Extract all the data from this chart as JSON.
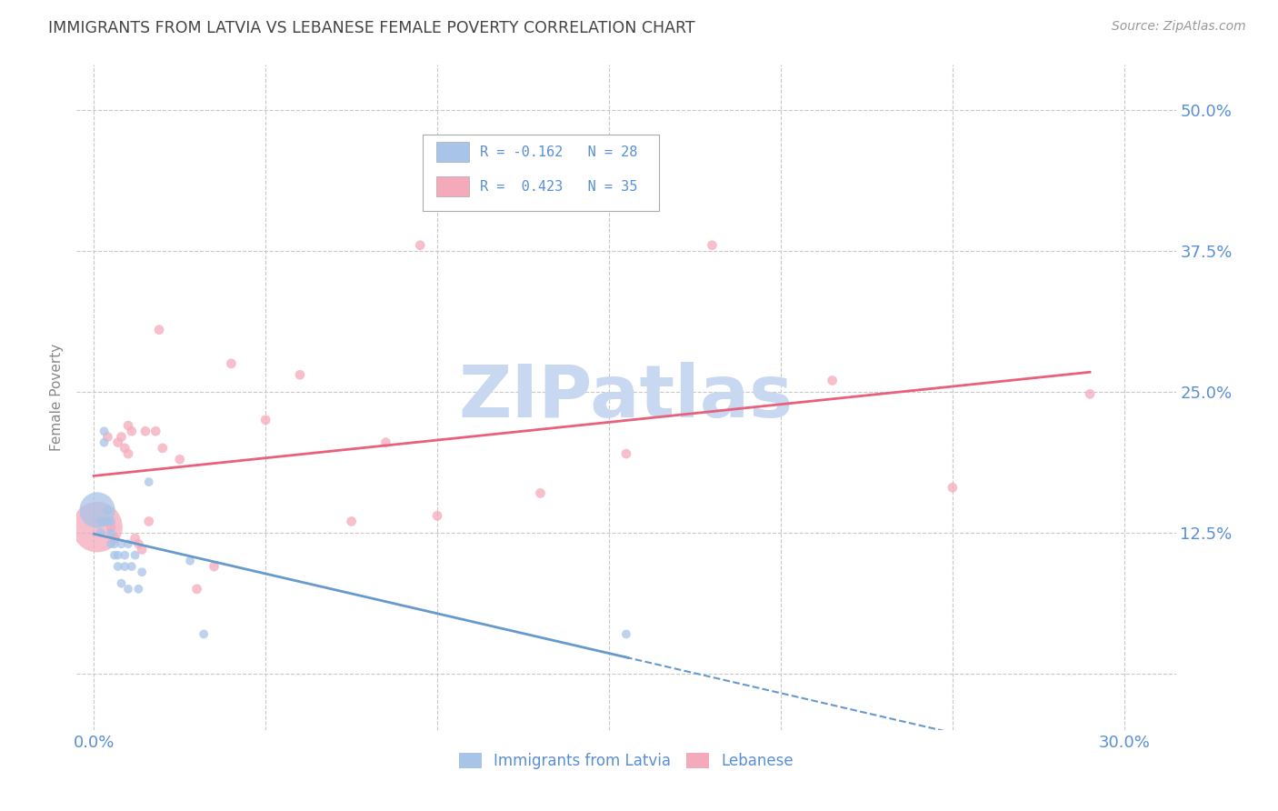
{
  "title": "IMMIGRANTS FROM LATVIA VS LEBANESE FEMALE POVERTY CORRELATION CHART",
  "source": "Source: ZipAtlas.com",
  "ylabel": "Female Poverty",
  "x_ticks": [
    0.0,
    0.05,
    0.1,
    0.15,
    0.2,
    0.25,
    0.3
  ],
  "y_ticks": [
    0.0,
    0.125,
    0.25,
    0.375,
    0.5
  ],
  "y_tick_labels": [
    "",
    "12.5%",
    "25.0%",
    "37.5%",
    "50.0%"
  ],
  "xlim": [
    -0.005,
    0.315
  ],
  "ylim": [
    -0.05,
    0.54
  ],
  "legend_r_blue": "-0.162",
  "legend_n_blue": "28",
  "legend_r_pink": "0.423",
  "legend_n_pink": "35",
  "blue_color": "#a8c4e8",
  "pink_color": "#f5aabb",
  "trend_blue": "#6699cc",
  "trend_pink": "#e8607a",
  "blue_scatter_x": [
    0.001,
    0.002,
    0.002,
    0.003,
    0.003,
    0.004,
    0.004,
    0.005,
    0.005,
    0.005,
    0.006,
    0.006,
    0.007,
    0.007,
    0.008,
    0.008,
    0.009,
    0.009,
    0.01,
    0.01,
    0.011,
    0.012,
    0.013,
    0.014,
    0.016,
    0.028,
    0.032,
    0.155
  ],
  "blue_scatter_y": [
    0.145,
    0.135,
    0.125,
    0.205,
    0.215,
    0.135,
    0.145,
    0.135,
    0.125,
    0.115,
    0.115,
    0.105,
    0.105,
    0.095,
    0.08,
    0.115,
    0.105,
    0.095,
    0.115,
    0.075,
    0.095,
    0.105,
    0.075,
    0.09,
    0.17,
    0.1,
    0.035,
    0.035
  ],
  "blue_scatter_sizes": [
    800,
    50,
    50,
    50,
    50,
    50,
    50,
    50,
    50,
    50,
    50,
    50,
    50,
    50,
    50,
    50,
    50,
    50,
    50,
    50,
    50,
    50,
    50,
    50,
    50,
    50,
    50,
    50
  ],
  "pink_scatter_x": [
    0.001,
    0.003,
    0.004,
    0.005,
    0.006,
    0.007,
    0.008,
    0.009,
    0.01,
    0.01,
    0.011,
    0.012,
    0.013,
    0.014,
    0.015,
    0.016,
    0.018,
    0.019,
    0.02,
    0.025,
    0.03,
    0.035,
    0.04,
    0.05,
    0.06,
    0.075,
    0.085,
    0.095,
    0.1,
    0.13,
    0.155,
    0.18,
    0.215,
    0.25,
    0.29
  ],
  "pink_scatter_y": [
    0.13,
    0.135,
    0.21,
    0.13,
    0.12,
    0.205,
    0.21,
    0.2,
    0.195,
    0.22,
    0.215,
    0.12,
    0.115,
    0.11,
    0.215,
    0.135,
    0.215,
    0.305,
    0.2,
    0.19,
    0.075,
    0.095,
    0.275,
    0.225,
    0.265,
    0.135,
    0.205,
    0.38,
    0.14,
    0.16,
    0.195,
    0.38,
    0.26,
    0.165,
    0.248
  ],
  "pink_scatter_sizes": [
    1600,
    60,
    60,
    60,
    60,
    60,
    60,
    60,
    60,
    60,
    60,
    60,
    60,
    60,
    60,
    60,
    60,
    60,
    60,
    60,
    60,
    60,
    60,
    60,
    60,
    60,
    60,
    60,
    60,
    60,
    60,
    60,
    60,
    60,
    60
  ],
  "watermark_text": "ZIPatlas",
  "watermark_color": "#c8d8f0",
  "axis_label_color": "#5a8fd4",
  "grid_color": "#c8c8c8",
  "title_color": "#444444",
  "bg_color": "#ffffff"
}
